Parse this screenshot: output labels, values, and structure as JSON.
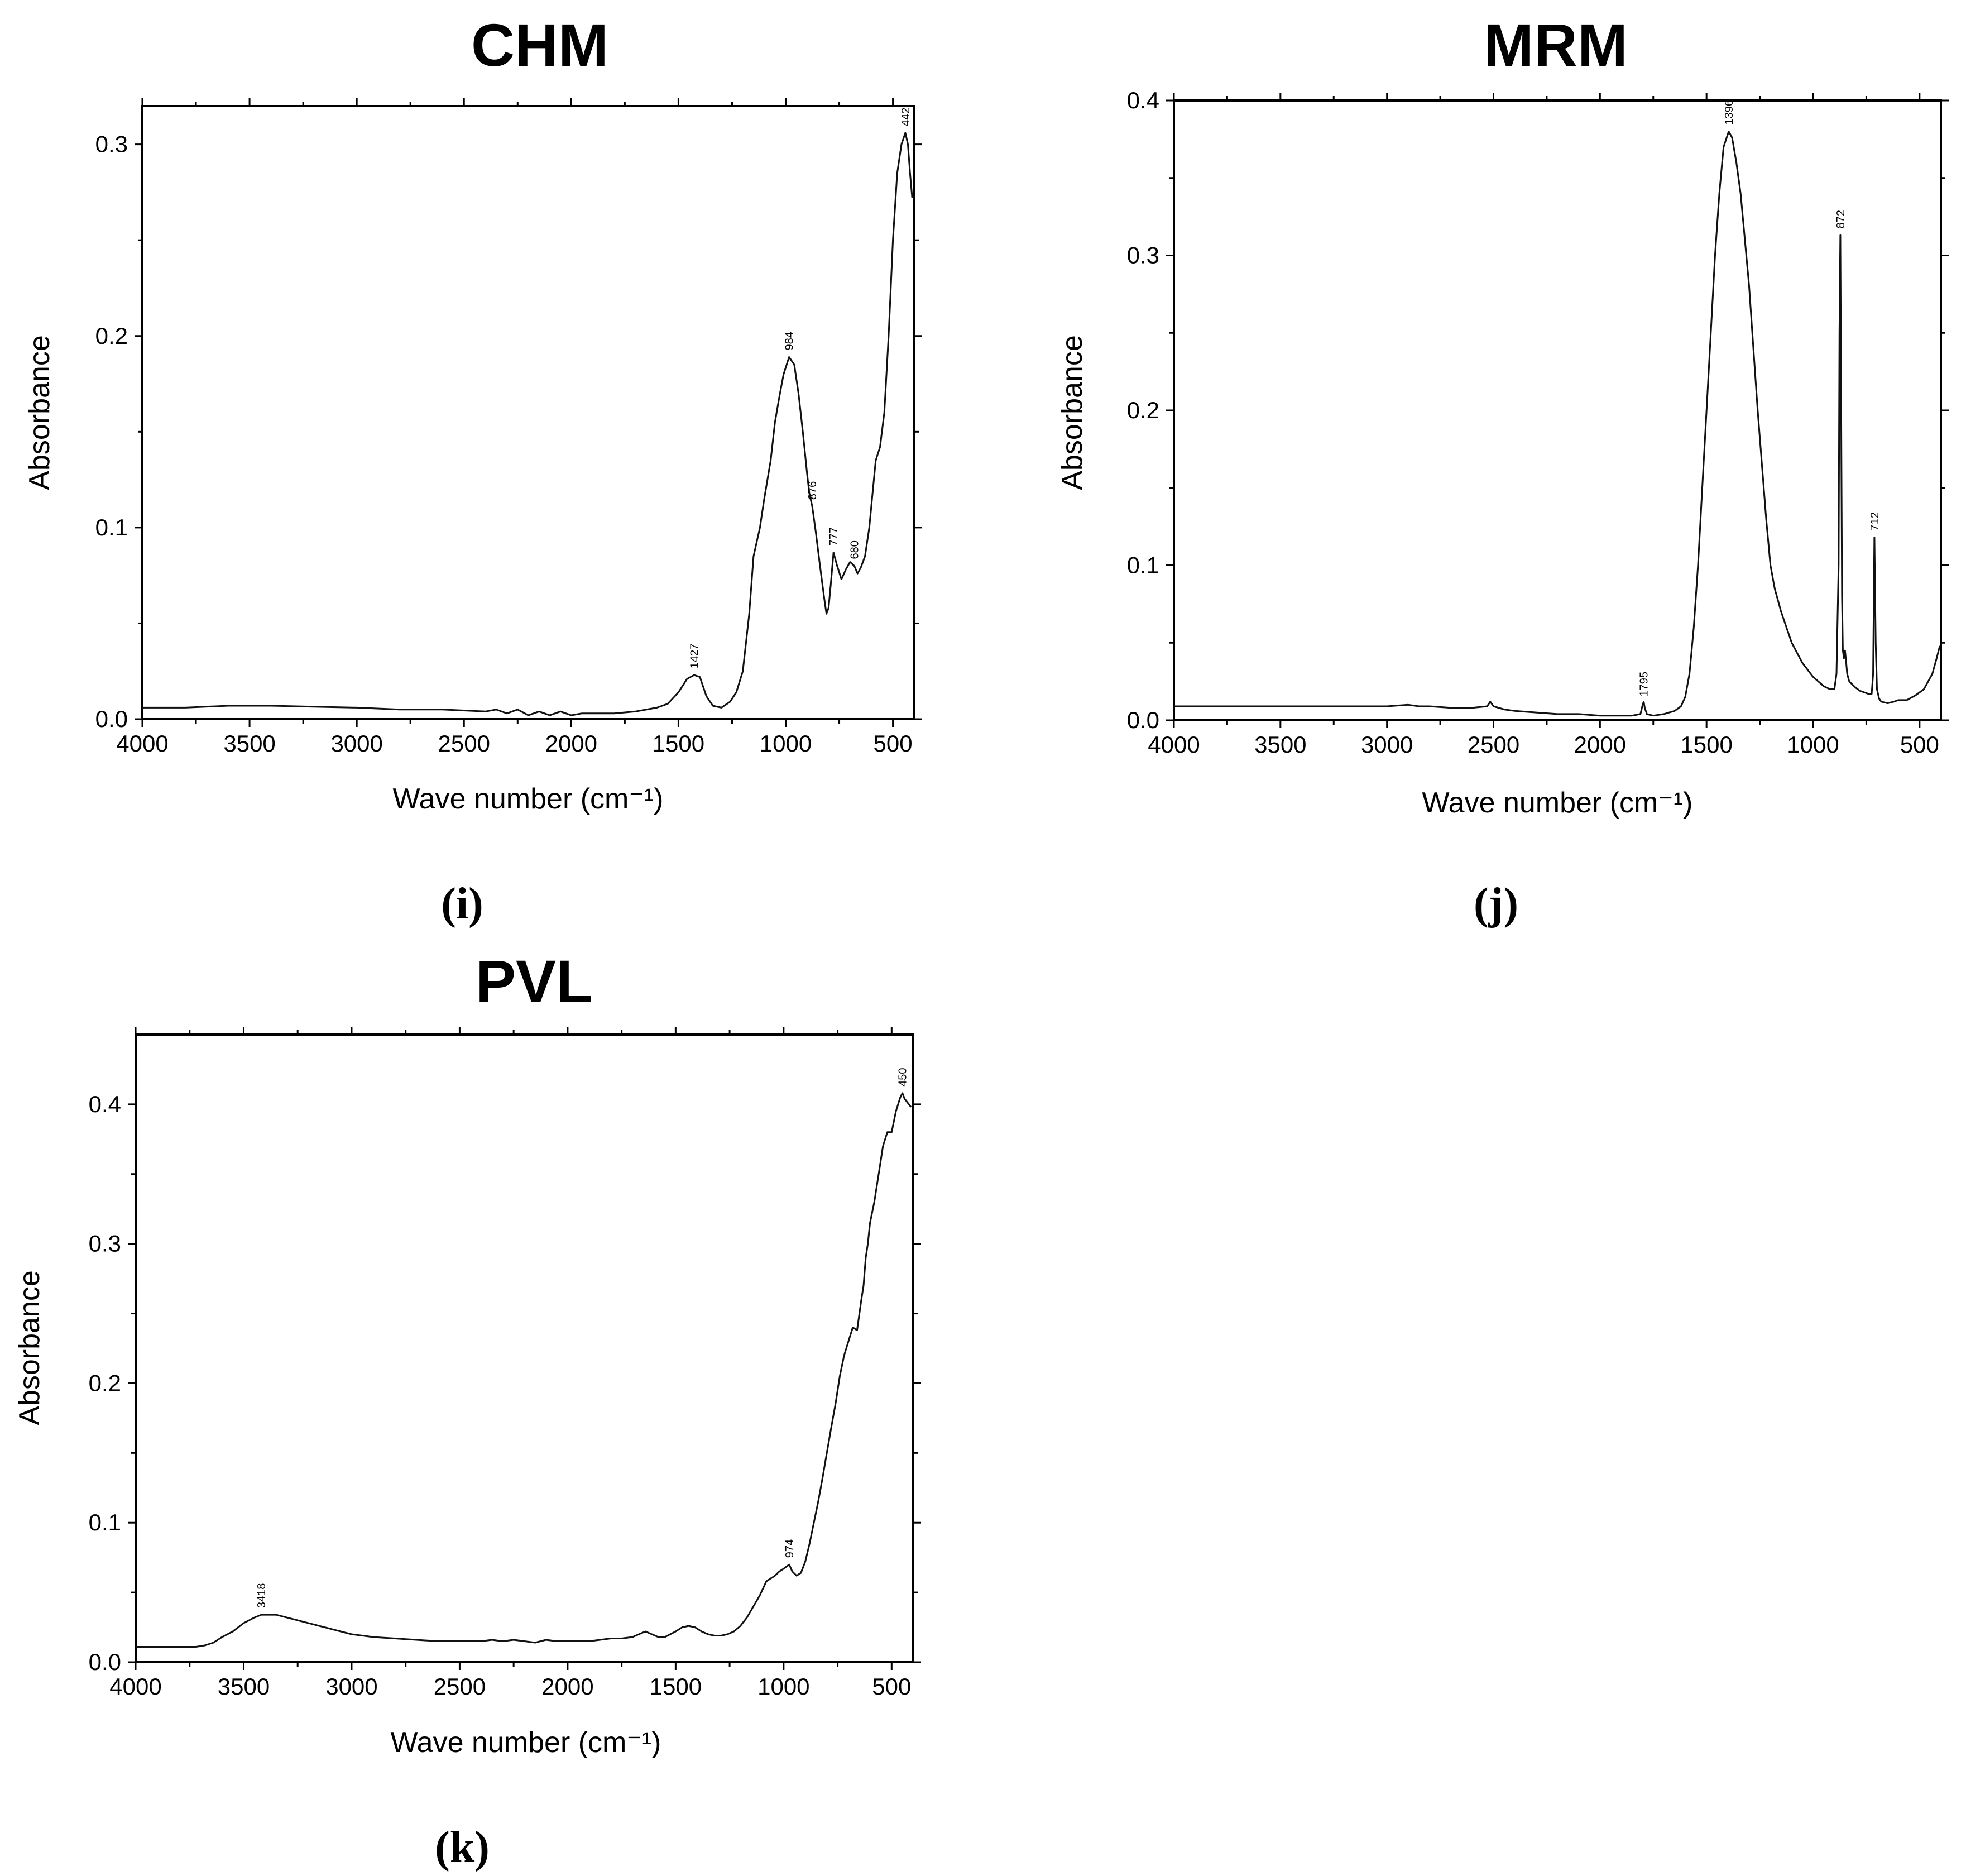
{
  "chart_data": [
    {
      "type": "line",
      "panel": "i",
      "caption": "(i)",
      "title": "CHM",
      "xlabel": "Wave number (cm⁻¹)",
      "ylabel": "Absorbance",
      "xlim": [
        4000,
        400
      ],
      "ylim": [
        0.0,
        0.32
      ],
      "xticks": [
        4000,
        3500,
        3000,
        2500,
        2000,
        1500,
        1000,
        500
      ],
      "yticks": [
        0.0,
        0.1,
        0.2,
        0.3
      ],
      "ytick_labels": [
        "0.0",
        "0.1",
        "0.2",
        "0.3"
      ],
      "peaks": [
        {
          "x": 1427,
          "y": 0.023,
          "label": "1427"
        },
        {
          "x": 984,
          "y": 0.189,
          "label": "984"
        },
        {
          "x": 876,
          "y": 0.111,
          "label": "876"
        },
        {
          "x": 777,
          "y": 0.087,
          "label": "777"
        },
        {
          "x": 680,
          "y": 0.08,
          "label": "680"
        },
        {
          "x": 442,
          "y": 0.306,
          "label": "442"
        }
      ],
      "x": [
        4000,
        3800,
        3600,
        3400,
        3200,
        3000,
        2800,
        2600,
        2400,
        2350,
        2300,
        2250,
        2200,
        2150,
        2100,
        2050,
        2000,
        1950,
        1900,
        1800,
        1700,
        1600,
        1550,
        1500,
        1460,
        1427,
        1400,
        1370,
        1340,
        1300,
        1260,
        1230,
        1200,
        1170,
        1150,
        1120,
        1100,
        1070,
        1050,
        1030,
        1010,
        984,
        960,
        940,
        920,
        900,
        890,
        876,
        860,
        840,
        820,
        810,
        800,
        790,
        777,
        760,
        740,
        720,
        700,
        680,
        665,
        650,
        630,
        610,
        600,
        580,
        560,
        540,
        520,
        500,
        480,
        460,
        442,
        430,
        420,
        410
      ],
      "y": [
        0.006,
        0.006,
        0.007,
        0.007,
        0.0065,
        0.006,
        0.005,
        0.005,
        0.004,
        0.005,
        0.003,
        0.005,
        0.002,
        0.004,
        0.002,
        0.004,
        0.002,
        0.003,
        0.003,
        0.003,
        0.004,
        0.006,
        0.008,
        0.014,
        0.021,
        0.023,
        0.022,
        0.012,
        0.007,
        0.006,
        0.009,
        0.014,
        0.025,
        0.055,
        0.085,
        0.1,
        0.115,
        0.135,
        0.155,
        0.168,
        0.18,
        0.189,
        0.185,
        0.17,
        0.15,
        0.128,
        0.118,
        0.111,
        0.098,
        0.08,
        0.063,
        0.055,
        0.058,
        0.07,
        0.087,
        0.08,
        0.073,
        0.078,
        0.082,
        0.08,
        0.076,
        0.079,
        0.085,
        0.1,
        0.112,
        0.135,
        0.142,
        0.16,
        0.2,
        0.25,
        0.285,
        0.3,
        0.306,
        0.3,
        0.285,
        0.272
      ]
    },
    {
      "type": "line",
      "panel": "j",
      "caption": "(j)",
      "title": "MRM",
      "xlabel": "Wave number (cm⁻¹)",
      "ylabel": "Absorbance",
      "xlim": [
        4000,
        400
      ],
      "ylim": [
        0.0,
        0.4
      ],
      "xticks": [
        4000,
        3500,
        3000,
        2500,
        2000,
        1500,
        1000,
        500
      ],
      "yticks": [
        0.0,
        0.1,
        0.2,
        0.3,
        0.4
      ],
      "ytick_labels": [
        "0.0",
        "0.1",
        "0.2",
        "0.3",
        "0.4"
      ],
      "peaks": [
        {
          "x": 1795,
          "y": 0.011,
          "label": "1795"
        },
        {
          "x": 1396,
          "y": 0.38,
          "label": "1396"
        },
        {
          "x": 872,
          "y": 0.313,
          "label": "872"
        },
        {
          "x": 712,
          "y": 0.118,
          "label": "712"
        }
      ],
      "x": [
        4000,
        3800,
        3600,
        3400,
        3200,
        3000,
        2900,
        2850,
        2800,
        2700,
        2600,
        2530,
        2515,
        2500,
        2450,
        2400,
        2300,
        2200,
        2100,
        2000,
        1900,
        1850,
        1810,
        1800,
        1795,
        1790,
        1780,
        1750,
        1700,
        1650,
        1620,
        1600,
        1580,
        1560,
        1540,
        1520,
        1500,
        1480,
        1460,
        1440,
        1420,
        1396,
        1380,
        1360,
        1340,
        1320,
        1300,
        1280,
        1260,
        1240,
        1220,
        1200,
        1180,
        1150,
        1100,
        1050,
        1000,
        950,
        920,
        900,
        890,
        880,
        876,
        872,
        868,
        864,
        860,
        855,
        850,
        845,
        840,
        830,
        800,
        780,
        760,
        740,
        725,
        718,
        712,
        706,
        700,
        690,
        680,
        650,
        620,
        600,
        560,
        520,
        480,
        440,
        420,
        405
      ],
      "y": [
        0.009,
        0.009,
        0.009,
        0.009,
        0.009,
        0.009,
        0.01,
        0.009,
        0.009,
        0.008,
        0.008,
        0.009,
        0.012,
        0.009,
        0.007,
        0.006,
        0.005,
        0.004,
        0.004,
        0.003,
        0.003,
        0.003,
        0.004,
        0.01,
        0.012,
        0.008,
        0.004,
        0.003,
        0.004,
        0.006,
        0.009,
        0.015,
        0.03,
        0.06,
        0.1,
        0.15,
        0.2,
        0.25,
        0.3,
        0.34,
        0.37,
        0.38,
        0.376,
        0.36,
        0.34,
        0.31,
        0.28,
        0.24,
        0.2,
        0.165,
        0.13,
        0.1,
        0.085,
        0.07,
        0.05,
        0.037,
        0.028,
        0.022,
        0.02,
        0.02,
        0.03,
        0.1,
        0.25,
        0.313,
        0.2,
        0.08,
        0.045,
        0.04,
        0.045,
        0.038,
        0.03,
        0.025,
        0.021,
        0.019,
        0.018,
        0.017,
        0.017,
        0.03,
        0.118,
        0.05,
        0.02,
        0.014,
        0.012,
        0.011,
        0.012,
        0.013,
        0.013,
        0.016,
        0.02,
        0.03,
        0.04,
        0.048
      ]
    },
    {
      "type": "line",
      "panel": "k",
      "caption": "(k)",
      "title": "PVL",
      "xlabel": "Wave number (cm⁻¹)",
      "ylabel": "Absorbance",
      "xlim": [
        4000,
        400
      ],
      "ylim": [
        0.0,
        0.45
      ],
      "xticks": [
        4000,
        3500,
        3000,
        2500,
        2000,
        1500,
        1000,
        500
      ],
      "yticks": [
        0.0,
        0.1,
        0.2,
        0.3,
        0.4
      ],
      "ytick_labels": [
        "0.0",
        "0.1",
        "0.2",
        "0.3",
        "0.4"
      ],
      "peaks": [
        {
          "x": 3418,
          "y": 0.034,
          "label": "3418"
        },
        {
          "x": 974,
          "y": 0.07,
          "label": "974"
        },
        {
          "x": 450,
          "y": 0.408,
          "label": "450"
        }
      ],
      "x": [
        4000,
        3900,
        3800,
        3720,
        3680,
        3640,
        3600,
        3550,
        3500,
        3450,
        3418,
        3380,
        3350,
        3300,
        3200,
        3100,
        3000,
        2900,
        2800,
        2700,
        2600,
        2500,
        2400,
        2350,
        2300,
        2250,
        2200,
        2150,
        2100,
        2050,
        2000,
        1950,
        1900,
        1850,
        1800,
        1750,
        1700,
        1670,
        1640,
        1610,
        1580,
        1550,
        1500,
        1470,
        1440,
        1410,
        1380,
        1350,
        1320,
        1290,
        1260,
        1230,
        1200,
        1170,
        1140,
        1110,
        1080,
        1060,
        1040,
        1020,
        1000,
        974,
        960,
        940,
        920,
        900,
        880,
        860,
        840,
        820,
        800,
        780,
        760,
        740,
        720,
        700,
        680,
        660,
        640,
        630,
        620,
        610,
        600,
        580,
        560,
        540,
        520,
        500,
        480,
        460,
        450,
        440,
        430,
        420,
        410
      ],
      "y": [
        0.011,
        0.011,
        0.011,
        0.011,
        0.012,
        0.014,
        0.018,
        0.022,
        0.028,
        0.032,
        0.034,
        0.034,
        0.034,
        0.032,
        0.028,
        0.024,
        0.02,
        0.018,
        0.017,
        0.016,
        0.015,
        0.015,
        0.015,
        0.016,
        0.015,
        0.016,
        0.015,
        0.014,
        0.016,
        0.015,
        0.015,
        0.015,
        0.015,
        0.016,
        0.017,
        0.017,
        0.018,
        0.02,
        0.022,
        0.02,
        0.018,
        0.018,
        0.022,
        0.025,
        0.026,
        0.025,
        0.022,
        0.02,
        0.019,
        0.019,
        0.02,
        0.022,
        0.026,
        0.032,
        0.04,
        0.048,
        0.058,
        0.06,
        0.062,
        0.065,
        0.067,
        0.07,
        0.065,
        0.062,
        0.064,
        0.072,
        0.085,
        0.1,
        0.115,
        0.132,
        0.15,
        0.168,
        0.185,
        0.205,
        0.22,
        0.23,
        0.24,
        0.238,
        0.26,
        0.27,
        0.29,
        0.3,
        0.315,
        0.33,
        0.35,
        0.37,
        0.38,
        0.38,
        0.395,
        0.405,
        0.408,
        0.404,
        0.402,
        0.4,
        0.398
      ]
    }
  ]
}
